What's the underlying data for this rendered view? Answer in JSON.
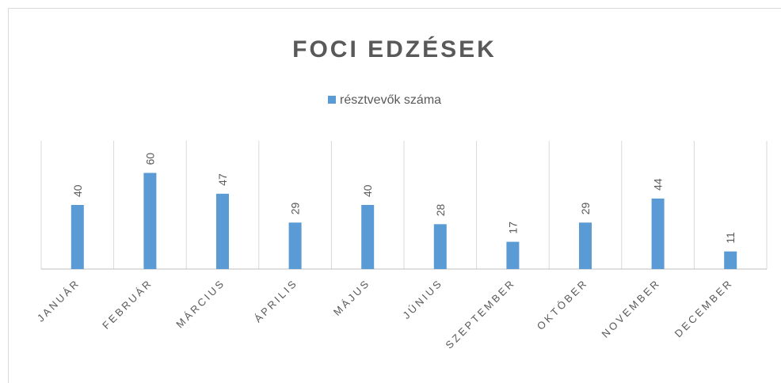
{
  "chart_data": {
    "type": "bar",
    "title": "FOCI EDZÉSEK",
    "categories": [
      "JANUÁR",
      "FEBRUÁR",
      "MÁRCIUS",
      "ÁPRILIS",
      "MÁJUS",
      "JÚNIUS",
      "SZEPTEMBER",
      "OKTÓBER",
      "NOVEMBER",
      "DECEMBER"
    ],
    "series": [
      {
        "name": "résztvevők száma",
        "color": "#5b9bd5",
        "values": [
          40,
          60,
          47,
          29,
          40,
          28,
          17,
          29,
          44,
          11
        ]
      }
    ],
    "ylim": [
      0,
      80
    ],
    "legend": "top"
  }
}
